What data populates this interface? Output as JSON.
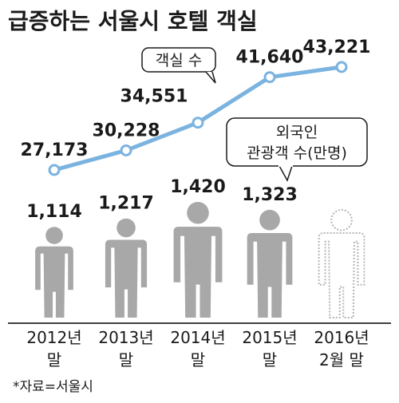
{
  "title": "급증하는 서울시 호텔 객실",
  "source": "*자료=서울시",
  "colors": {
    "line": "#7bb3e0",
    "person": "#a8a8a8",
    "person_outline": "#b5b5b5",
    "axis": "#000000"
  },
  "callouts": {
    "rooms": "객실 수",
    "tourists_line1": "외국인",
    "tourists_line2": "관광객 수(만명)"
  },
  "chart_data": [
    {
      "type": "line",
      "series": [
        {
          "name": "객실 수",
          "values": [
            27173,
            30228,
            34551,
            41640,
            43221
          ]
        }
      ],
      "categories": [
        "2012년 말",
        "2013년 말",
        "2014년 말",
        "2015년 말",
        "2016년 2월 말"
      ],
      "labels": [
        "27,173",
        "30,228",
        "34,551",
        "41,640",
        "43,221"
      ]
    },
    {
      "type": "bar",
      "series": [
        {
          "name": "외국인 관광객 수(만명)",
          "values": [
            1114,
            1217,
            1420,
            1323,
            null
          ]
        }
      ],
      "categories": [
        "2012년 말",
        "2013년 말",
        "2014년 말",
        "2015년 말",
        "2016년 2월 말"
      ],
      "labels": [
        "1,114",
        "1,217",
        "1,420",
        "1,323"
      ]
    }
  ],
  "x_labels": [
    {
      "line1": "2012년",
      "line2": "말"
    },
    {
      "line1": "2013년",
      "line2": "말"
    },
    {
      "line1": "2014년",
      "line2": "말"
    },
    {
      "line1": "2015년",
      "line2": "말"
    },
    {
      "line1": "2016년",
      "line2": "2월 말"
    }
  ]
}
